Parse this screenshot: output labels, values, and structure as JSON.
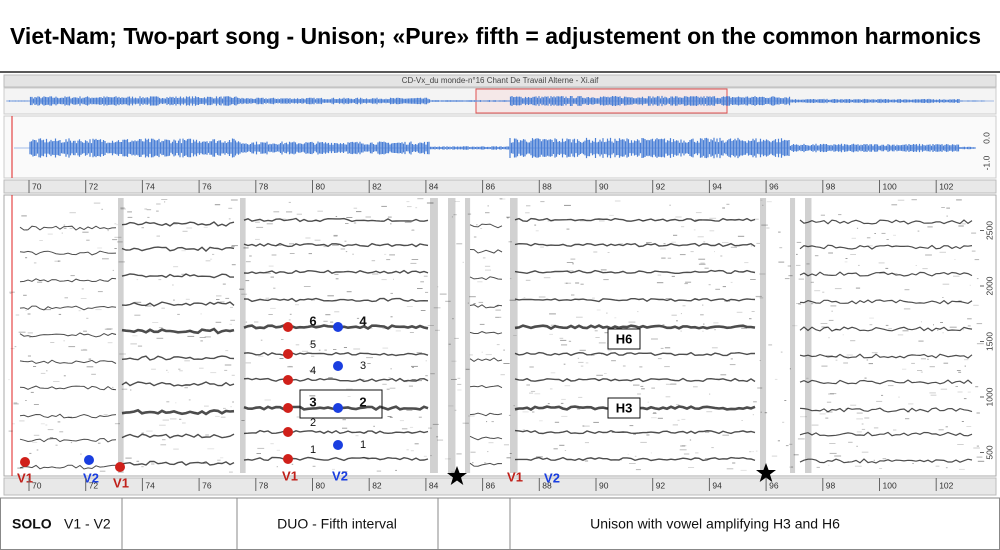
{
  "title": "Viet-Nam; Two-part song - Unison;  «Pure» fifth  = adjustement on the common harmonics",
  "window_title": "CD-Vx_du monde-n°16 Chant De Travail Alterne - Xi.aif",
  "waveform_scale": [
    "0.0",
    "-1.0"
  ],
  "time_ruler": [
    70,
    72,
    74,
    76,
    78,
    80,
    82,
    84,
    86,
    88,
    90,
    92,
    94,
    96,
    98,
    100,
    102
  ],
  "frequency_axis": [
    2500,
    2000,
    1500,
    1000,
    500
  ],
  "annotations": {
    "solo": {
      "v1": "V1",
      "v2": "V2",
      "v1_again": "V1"
    },
    "duo": {
      "v1": "V1",
      "v1_harmonics": [
        "6",
        "5",
        "4",
        "3",
        "2",
        "1"
      ],
      "v2": "V2",
      "v2_harmonics": [
        "4",
        "3",
        "2",
        "1"
      ]
    },
    "unison": {
      "v1": "V1",
      "v2": "V2"
    },
    "harmonic_tags": [
      "H6",
      "H3"
    ]
  },
  "sections": [
    {
      "label": "SOLO",
      "detail": "V1 - V2"
    },
    {
      "label": "DUO - Fifth interval"
    },
    {
      "label": "Unison with vowel amplifying H3 and H6"
    }
  ]
}
